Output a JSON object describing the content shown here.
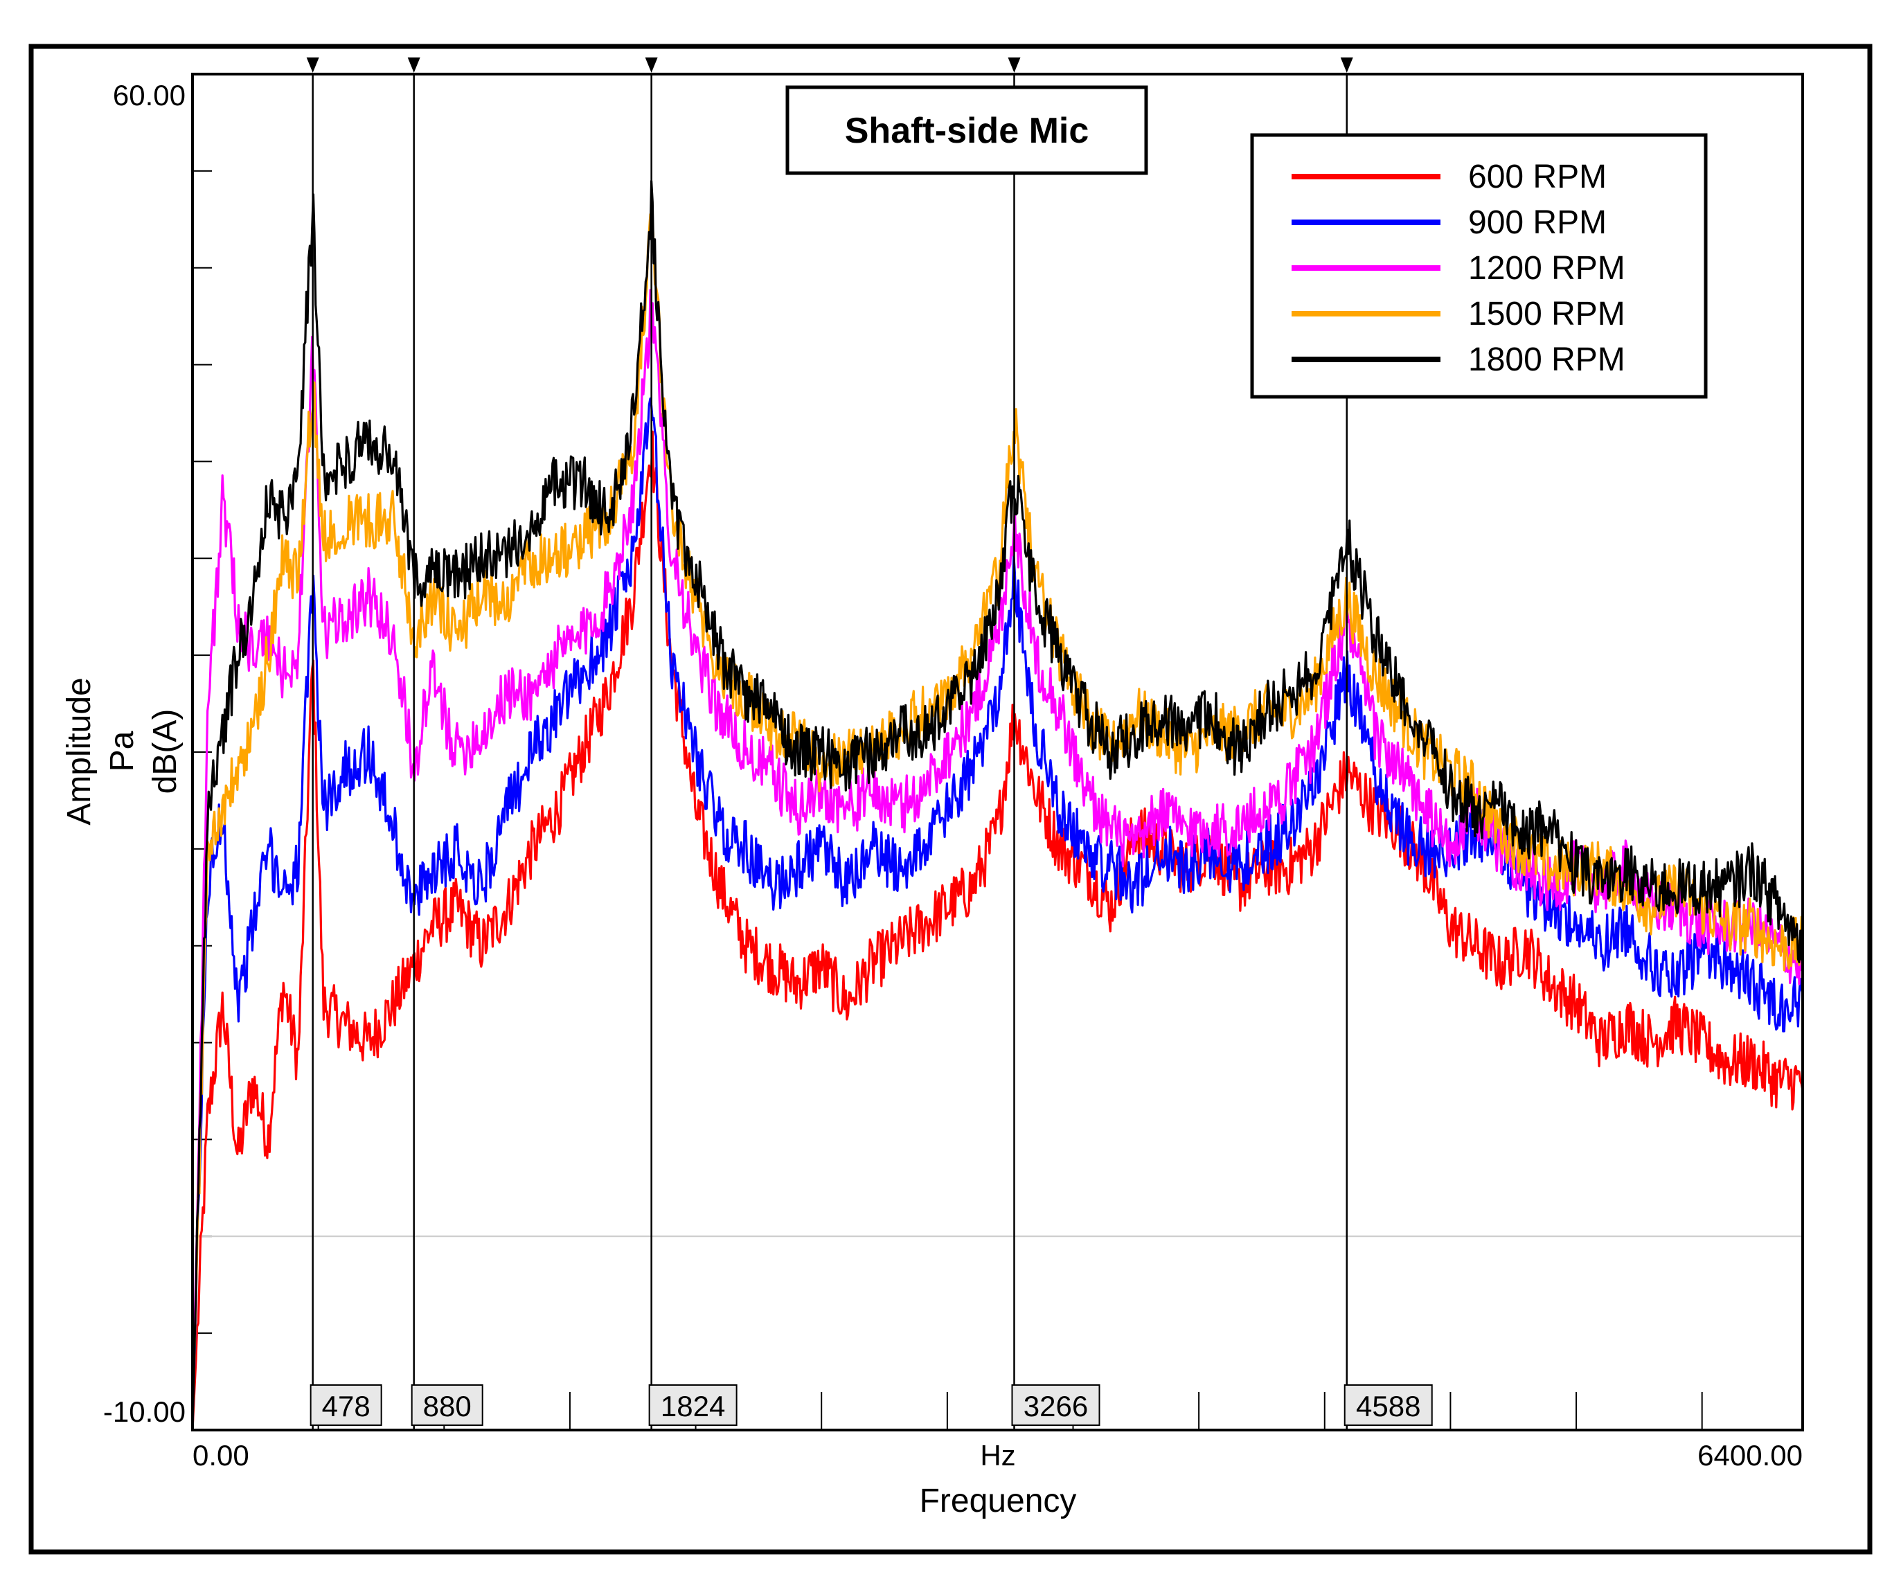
{
  "chart_data": {
    "type": "line",
    "title": "Shaft-side Mic",
    "xlabel": "Frequency",
    "xunit": "Hz",
    "ylabel_lines": [
      "Amplitude",
      "Pa",
      "dB(A)"
    ],
    "xlim": [
      0,
      6400
    ],
    "ylim": [
      -10,
      60
    ],
    "x_tick_labels": [
      "0.00",
      "6400.00"
    ],
    "y_tick_labels": [
      "60.00",
      "-10.00"
    ],
    "y_minor_step": 5,
    "x_minor_step": 500,
    "reference_line_y": 0,
    "legend_position": "top-right",
    "cursors": [
      {
        "x": 478,
        "label": "478"
      },
      {
        "x": 880,
        "label": "880"
      },
      {
        "x": 1824,
        "label": "1824"
      },
      {
        "x": 3266,
        "label": "3266"
      },
      {
        "x": 4588,
        "label": "4588"
      }
    ],
    "series": [
      {
        "name": "600 RPM",
        "color": "#ff0000",
        "x": [
          0,
          60,
          120,
          180,
          240,
          300,
          360,
          420,
          478,
          520,
          600,
          700,
          800,
          880,
          950,
          1050,
          1150,
          1250,
          1350,
          1450,
          1550,
          1650,
          1750,
          1824,
          1900,
          2000,
          2100,
          2200,
          2300,
          2400,
          2500,
          2600,
          2700,
          2800,
          2900,
          3000,
          3100,
          3200,
          3266,
          3350,
          3450,
          3550,
          3650,
          3750,
          3850,
          3950,
          4050,
          4150,
          4250,
          4350,
          4450,
          4588,
          4700,
          4800,
          4900,
          5000,
          5100,
          5200,
          5300,
          5400,
          5500,
          5600,
          5700,
          5800,
          5900,
          6000,
          6100,
          6200,
          6300,
          6400
        ],
        "values": [
          -10,
          6,
          12,
          4,
          8,
          5,
          13,
          9,
          30,
          12,
          11,
          10,
          12,
          14,
          16,
          17,
          15,
          17,
          20,
          22,
          25,
          28,
          33,
          41,
          30,
          22,
          18,
          15,
          14,
          13,
          14,
          12,
          14,
          15,
          16,
          17,
          18,
          21,
          27,
          23,
          20,
          19,
          17,
          21,
          20,
          19,
          20,
          18,
          19,
          19,
          20,
          24,
          22,
          21,
          19,
          16,
          15,
          14,
          15,
          13,
          12,
          10,
          11,
          10,
          11,
          10,
          9,
          9,
          8,
          8
        ]
      },
      {
        "name": "900 RPM",
        "color": "#0000ff",
        "x": [
          0,
          60,
          120,
          180,
          240,
          300,
          360,
          420,
          478,
          520,
          600,
          700,
          800,
          880,
          950,
          1050,
          1150,
          1250,
          1350,
          1450,
          1550,
          1650,
          1750,
          1824,
          1900,
          2000,
          2100,
          2200,
          2300,
          2400,
          2500,
          2600,
          2700,
          2800,
          2900,
          3000,
          3100,
          3200,
          3266,
          3350,
          3450,
          3550,
          3650,
          3750,
          3850,
          3950,
          4050,
          4150,
          4250,
          4350,
          4450,
          4588,
          4700,
          4800,
          4900,
          5000,
          5100,
          5200,
          5300,
          5400,
          5500,
          5600,
          5700,
          5800,
          5900,
          6000,
          6100,
          6200,
          6300,
          6400
        ],
        "values": [
          -10,
          18,
          22,
          12,
          16,
          20,
          18,
          19,
          34,
          22,
          24,
          25,
          21,
          17,
          19,
          20,
          18,
          22,
          25,
          27,
          29,
          31,
          35,
          43,
          30,
          25,
          21,
          20,
          18,
          19,
          20,
          18,
          20,
          19,
          20,
          22,
          24,
          28,
          34,
          26,
          22,
          20,
          19,
          18,
          20,
          19,
          20,
          19,
          20,
          21,
          23,
          29,
          24,
          21,
          20,
          20,
          21,
          20,
          18,
          17,
          16,
          15,
          16,
          14,
          13,
          15,
          14,
          13,
          12,
          12
        ]
      },
      {
        "name": "1200 RPM",
        "color": "#ff00ff",
        "x": [
          0,
          60,
          120,
          180,
          240,
          300,
          360,
          420,
          478,
          520,
          600,
          700,
          800,
          880,
          950,
          1050,
          1150,
          1250,
          1350,
          1450,
          1550,
          1650,
          1750,
          1824,
          1900,
          2000,
          2100,
          2200,
          2300,
          2400,
          2500,
          2600,
          2700,
          2800,
          2900,
          3000,
          3100,
          3200,
          3266,
          3350,
          3450,
          3550,
          3650,
          3750,
          3850,
          3950,
          4050,
          4150,
          4250,
          4350,
          4450,
          4588,
          4700,
          4800,
          4900,
          5000,
          5100,
          5200,
          5300,
          5400,
          5500,
          5600,
          5700,
          5800,
          5900,
          6000,
          6100,
          6200,
          6300,
          6400
        ],
        "values": [
          -10,
          27,
          38,
          32,
          30,
          31,
          29,
          30,
          46,
          31,
          32,
          33,
          31,
          24,
          29,
          25,
          26,
          28,
          28,
          30,
          31,
          33,
          38,
          48,
          36,
          30,
          27,
          25,
          24,
          22,
          23,
          22,
          23,
          22,
          23,
          25,
          27,
          31,
          37,
          30,
          27,
          23,
          21,
          20,
          22,
          21,
          21,
          21,
          22,
          23,
          25,
          32,
          26,
          24,
          22,
          20,
          22,
          20,
          19,
          18,
          19,
          18,
          19,
          17,
          17,
          16,
          16,
          16,
          15,
          14
        ]
      },
      {
        "name": "1500 RPM",
        "color": "#ffa500",
        "x": [
          0,
          60,
          120,
          180,
          240,
          300,
          360,
          420,
          478,
          520,
          600,
          700,
          800,
          880,
          950,
          1050,
          1150,
          1250,
          1350,
          1450,
          1550,
          1650,
          1750,
          1824,
          1900,
          2000,
          2100,
          2200,
          2300,
          2400,
          2500,
          2600,
          2700,
          2800,
          2900,
          3000,
          3100,
          3200,
          3266,
          3350,
          3450,
          3550,
          3650,
          3750,
          3850,
          3950,
          4050,
          4150,
          4250,
          4350,
          4450,
          4588,
          4700,
          4800,
          4900,
          5000,
          5100,
          5200,
          5300,
          5400,
          5500,
          5600,
          5700,
          5800,
          5900,
          6000,
          6100,
          6200,
          6300,
          6400
        ],
        "values": [
          -10,
          20,
          22,
          24,
          26,
          30,
          35,
          34,
          44,
          36,
          37,
          37,
          37,
          31,
          33,
          31,
          33,
          33,
          35,
          35,
          36,
          37,
          41,
          52,
          38,
          33,
          29,
          28,
          26,
          26,
          24,
          25,
          25,
          26,
          27,
          28,
          30,
          34,
          42,
          34,
          30,
          27,
          25,
          27,
          26,
          25,
          26,
          26,
          27,
          27,
          28,
          33,
          29,
          27,
          25,
          24,
          23,
          21,
          20,
          19,
          19,
          19,
          18,
          17,
          18,
          17,
          16,
          16,
          15,
          15
        ]
      },
      {
        "name": "1800 RPM",
        "color": "#000000",
        "x": [
          0,
          60,
          120,
          180,
          240,
          300,
          360,
          420,
          478,
          520,
          600,
          700,
          800,
          880,
          950,
          1050,
          1150,
          1250,
          1350,
          1450,
          1550,
          1650,
          1750,
          1824,
          1900,
          2000,
          2100,
          2200,
          2300,
          2400,
          2500,
          2600,
          2700,
          2800,
          2900,
          3000,
          3100,
          3200,
          3266,
          3350,
          3450,
          3550,
          3650,
          3750,
          3850,
          3950,
          4050,
          4150,
          4250,
          4350,
          4450,
          4588,
          4700,
          4800,
          4900,
          5000,
          5100,
          5200,
          5300,
          5400,
          5500,
          5600,
          5700,
          5800,
          5900,
          6000,
          6100,
          6200,
          6300,
          6400
        ],
        "values": [
          -10,
          22,
          26,
          30,
          33,
          38,
          37,
          40,
          53,
          39,
          40,
          41,
          40,
          34,
          34,
          34,
          35,
          35,
          37,
          39,
          39,
          37,
          42,
          53,
          38,
          34,
          30,
          28,
          27,
          25,
          25,
          24,
          25,
          26,
          26,
          27,
          29,
          33,
          39,
          33,
          30,
          27,
          25,
          26,
          27,
          26,
          27,
          25,
          27,
          28,
          29,
          36,
          31,
          28,
          26,
          23,
          22,
          22,
          21,
          21,
          19,
          18,
          19,
          18,
          18,
          18,
          18,
          19,
          17,
          15
        ]
      }
    ]
  }
}
